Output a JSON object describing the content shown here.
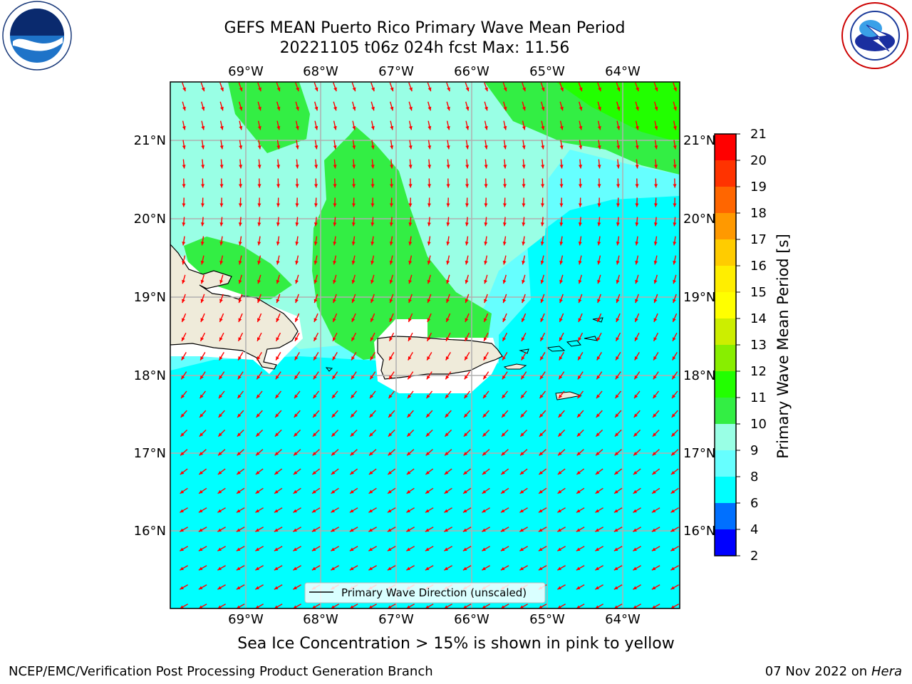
{
  "header": {
    "title_line1": "GEFS MEAN Puerto Rico Primary Wave Mean Period",
    "title_line2": "20221105 t06z 024h fcst   Max: 11.56"
  },
  "map": {
    "lon_ticks": [
      "69°W",
      "68°W",
      "67°W",
      "66°W",
      "65°W",
      "64°W"
    ],
    "lat_ticks": [
      "21°N",
      "20°N",
      "19°N",
      "18°N",
      "17°N",
      "16°N"
    ],
    "legend_label": "Primary Wave Direction (unscaled)",
    "arrow_color": "#ff0000",
    "land_color": "#efebda"
  },
  "colorbar": {
    "label": "Primary Wave Mean Period [s]",
    "ticks": [
      "2",
      "4",
      "6",
      "8",
      "9",
      "10",
      "11",
      "12",
      "13",
      "14",
      "15",
      "16",
      "17",
      "18",
      "19",
      "20",
      "21"
    ],
    "colors": [
      "#0000ff",
      "#0070ff",
      "#00ffff",
      "#66ffff",
      "#99ffe5",
      "#33ee44",
      "#22ff00",
      "#88ee00",
      "#ccee00",
      "#ffff00",
      "#ffee00",
      "#ffcc00",
      "#ff9900",
      "#ff6600",
      "#ff3300",
      "#ff0000"
    ]
  },
  "field_colors": {
    "period_8": "#00ffff",
    "period_9": "#66ffff",
    "period_10": "#99ffe5",
    "period_11": "#33ee44",
    "period_12": "#22ff00"
  },
  "footer": {
    "note": "Sea Ice Concentration > 15% is shown in pink to yellow",
    "credit_left": "NCEP/EMC/Verification Post Processing Product Generation Branch",
    "credit_date": "07 Nov 2022 on",
    "credit_host": "Hera"
  },
  "logos": {
    "left": "noaa-logo",
    "left_text": "NOAA",
    "right": "nws-logo",
    "right_text": "NATIONAL WEATHER SERVICE"
  }
}
